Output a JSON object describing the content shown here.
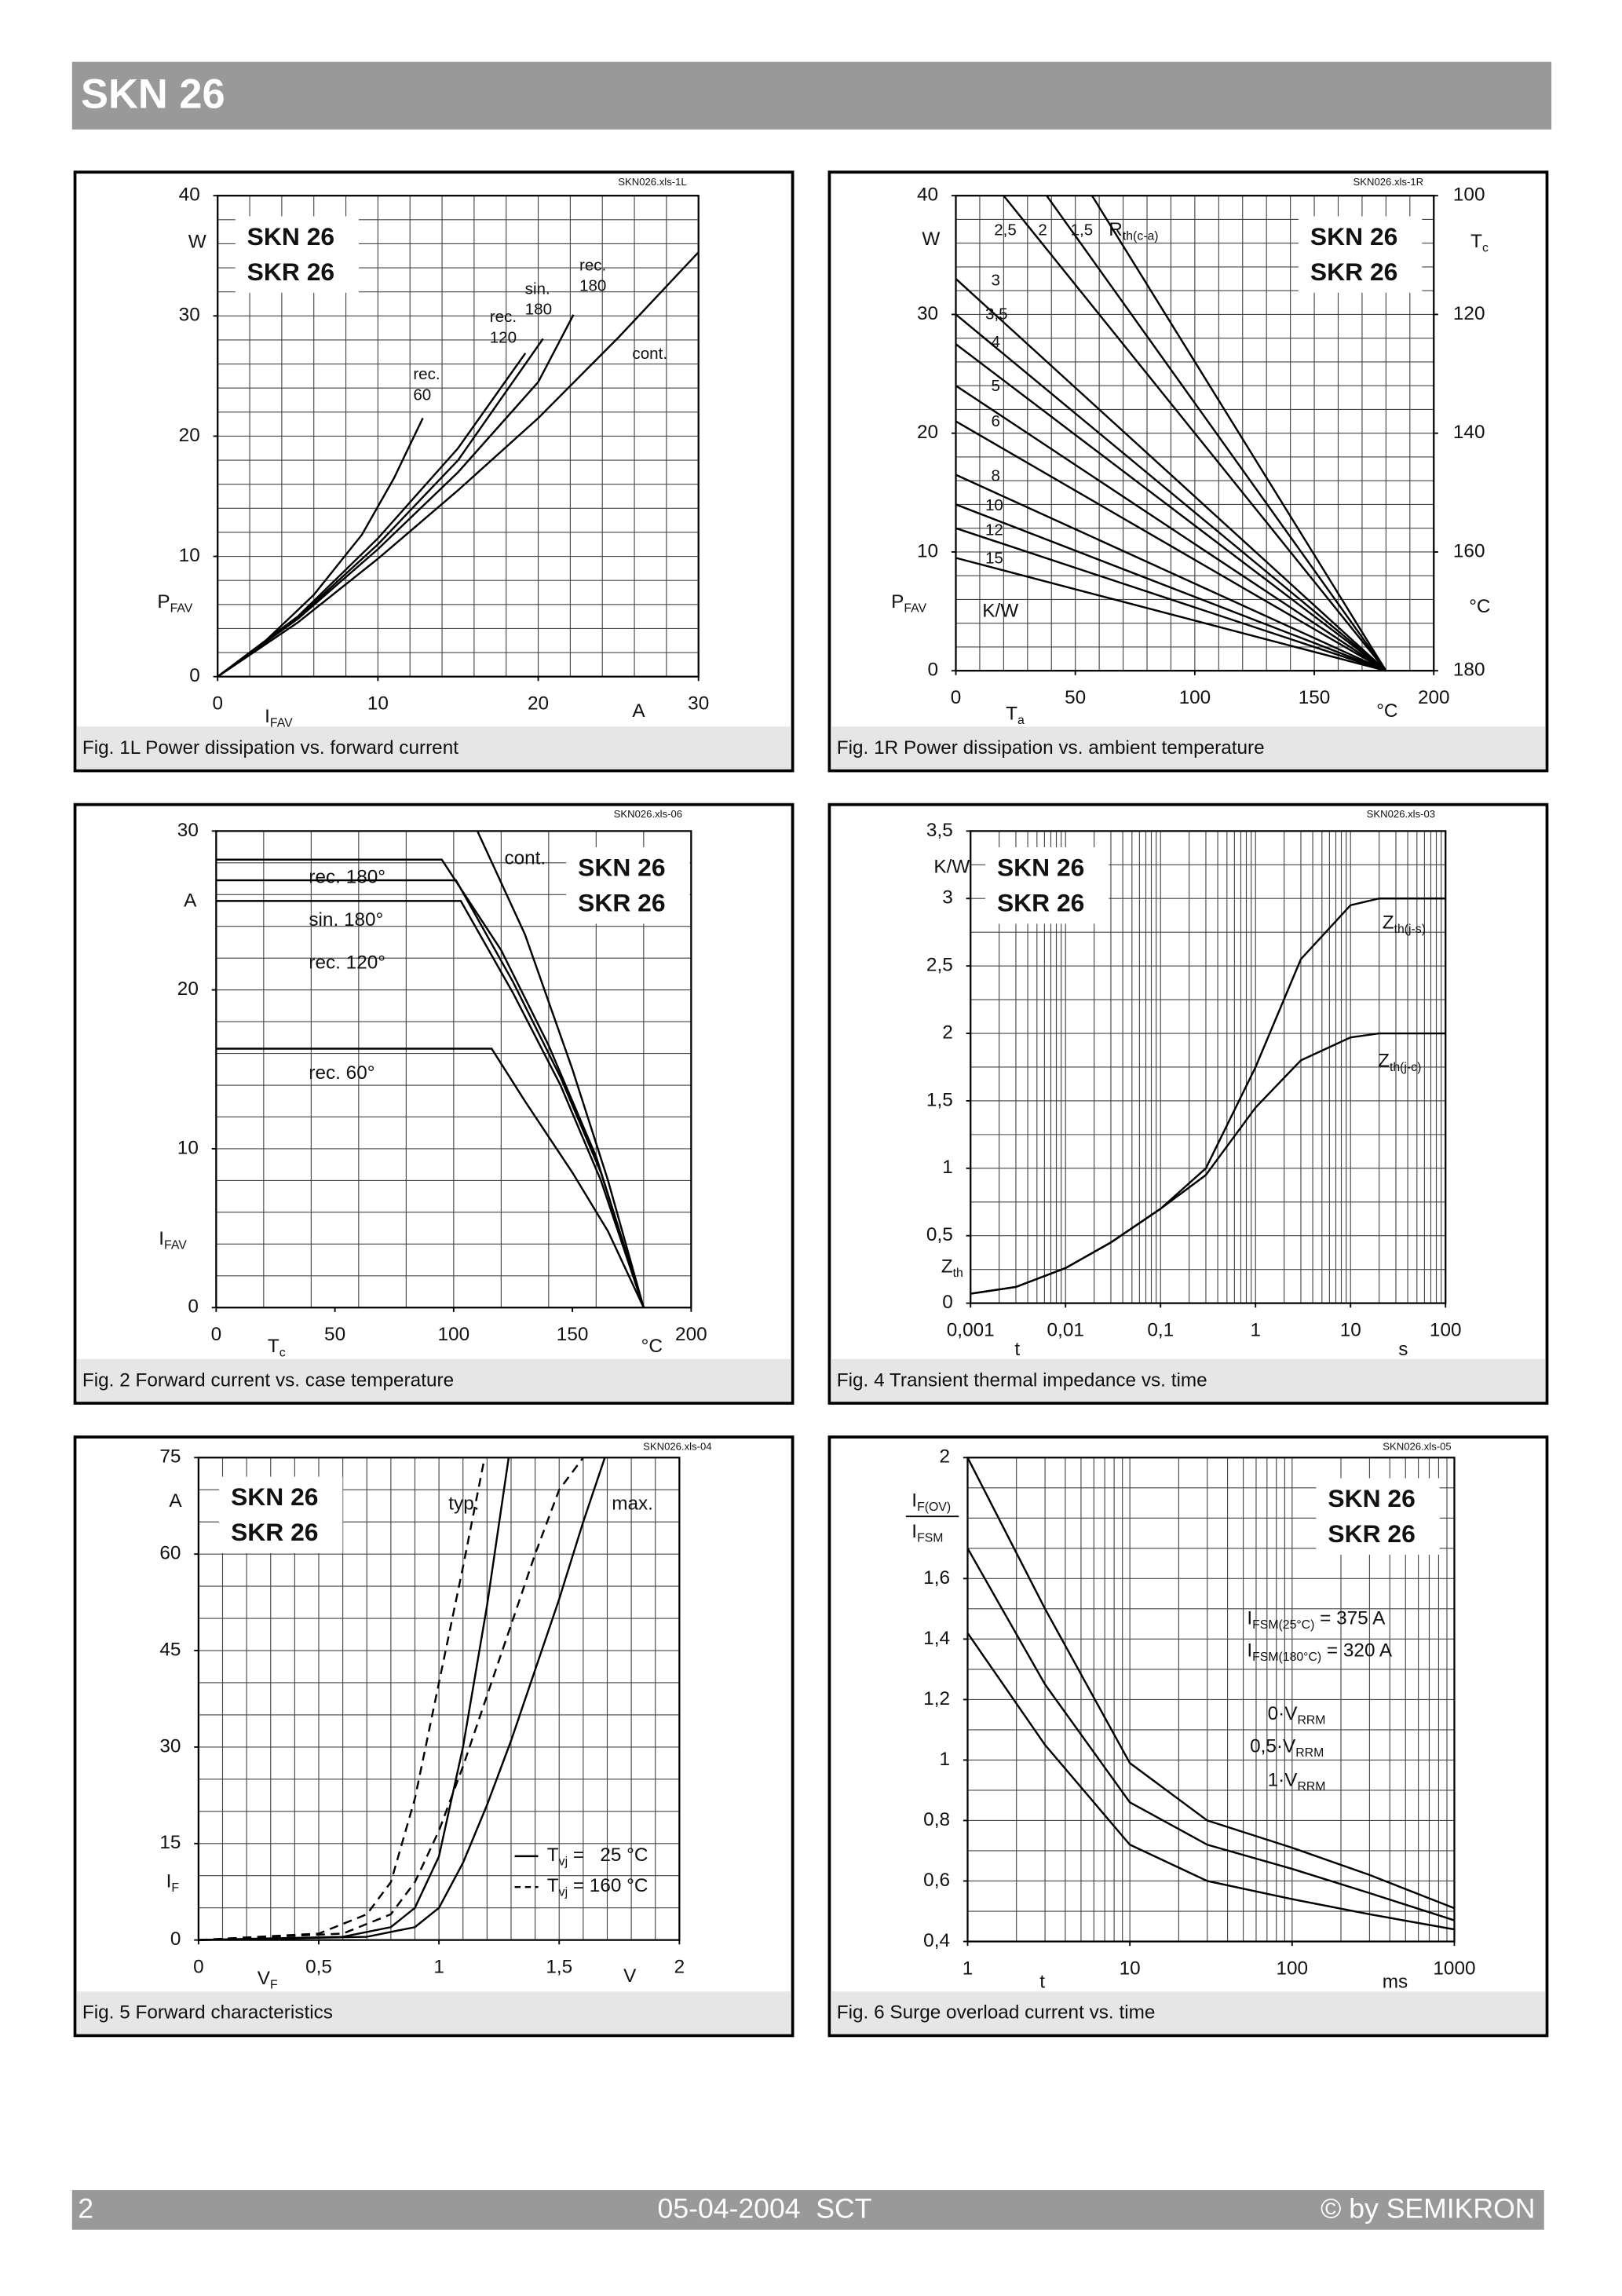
{
  "header": {
    "title": "SKN 26"
  },
  "footer": {
    "page": "2",
    "date": "05-04-2004  SCT",
    "copyright": "© by SEMIKRON"
  },
  "chart_data": [
    {
      "type": "line",
      "file": "SKN026.xls-1L",
      "caption": "Fig. 1L Power dissipation vs. forward current",
      "brand": [
        "SKN 26",
        "SKR 26"
      ],
      "xlim": [
        0,
        30
      ],
      "xticks": [
        0,
        10,
        20,
        30
      ],
      "xgrid": [
        0,
        2,
        4,
        6,
        8,
        10,
        12,
        14,
        16,
        18,
        20,
        22,
        24,
        26,
        28,
        30
      ],
      "ylim": [
        0,
        40
      ],
      "yticks": [
        0,
        10,
        20,
        30,
        40
      ],
      "ygrid": [
        0,
        2,
        4,
        6,
        8,
        10,
        12,
        14,
        16,
        18,
        20,
        22,
        24,
        26,
        28,
        30,
        32,
        34,
        36,
        38,
        40
      ],
      "labels": [
        "W",
        {
          "main": "P",
          "sub": "FAV"
        },
        {
          "main": "I",
          "sub": "FAV"
        },
        "A"
      ],
      "series": [
        {
          "name": [
            "rec.",
            "60"
          ],
          "x": [
            0,
            3,
            6,
            9,
            11,
            12.8
          ],
          "values": [
            0,
            3,
            6.8,
            11.8,
            16.5,
            21.5
          ]
        },
        {
          "name": [
            "rec.",
            "120"
          ],
          "x": [
            0,
            5,
            10,
            15,
            19.2
          ],
          "values": [
            0,
            5,
            11.5,
            19,
            26.9
          ]
        },
        {
          "name": [
            "sin.",
            "180"
          ],
          "x": [
            0,
            5,
            10,
            15,
            20.3
          ],
          "values": [
            0,
            4.9,
            11,
            18,
            28.1
          ]
        },
        {
          "name": [
            "rec.",
            "180"
          ],
          "x": [
            0,
            5,
            10,
            15,
            20,
            22.2
          ],
          "values": [
            0,
            4.8,
            10.6,
            17,
            24.5,
            30.1
          ]
        },
        {
          "name": "cont.",
          "x": [
            0,
            5,
            10,
            15,
            20,
            25,
            30
          ],
          "values": [
            0,
            4.5,
            9.8,
            15.5,
            21.5,
            28.2,
            35.3
          ]
        }
      ]
    },
    {
      "type": "line",
      "file": "SKN026.xls-1R",
      "caption": "Fig. 1R Power dissipation vs. ambient temperature",
      "brand": [
        "SKN 26",
        "SKR 26"
      ],
      "xlim": [
        0,
        200
      ],
      "xticks": [
        0,
        50,
        100,
        150,
        200
      ],
      "xgrid": [
        0,
        10,
        20,
        30,
        40,
        50,
        60,
        70,
        80,
        90,
        100,
        110,
        120,
        130,
        140,
        150,
        160,
        170,
        180,
        190,
        200
      ],
      "ylim": [
        0,
        40
      ],
      "yticks": [
        0,
        10,
        20,
        30,
        40
      ],
      "ygrid": [
        0,
        2,
        4,
        6,
        8,
        10,
        12,
        14,
        16,
        18,
        20,
        22,
        24,
        26,
        28,
        30,
        32,
        34,
        36,
        38,
        40
      ],
      "y2lim": [
        180,
        100
      ],
      "y2ticks": [
        100,
        120,
        140,
        160,
        180
      ],
      "labels": [
        "W",
        {
          "main": "P",
          "sub": "FAV"
        },
        {
          "main": "T",
          "sub": "a"
        },
        "°C",
        {
          "main": "T",
          "sub": "c"
        },
        "°C",
        "K/W",
        {
          "main": "R",
          "sub": "th(c-a)"
        }
      ],
      "series": [
        {
          "name": "2,5",
          "x": [
            20,
            180
          ],
          "values": [
            40,
            0
          ]
        },
        {
          "name": "2",
          "x": [
            38,
            180
          ],
          "values": [
            40,
            0
          ]
        },
        {
          "name": "1,5",
          "x": [
            57,
            180
          ],
          "values": [
            40,
            0
          ]
        },
        {
          "name": "3",
          "x": [
            0,
            180
          ],
          "values": [
            33,
            0
          ]
        },
        {
          "name": "3,5",
          "x": [
            0,
            180
          ],
          "values": [
            30,
            0
          ]
        },
        {
          "name": "4",
          "x": [
            0,
            180
          ],
          "values": [
            27.5,
            0
          ]
        },
        {
          "name": "5",
          "x": [
            0,
            180
          ],
          "values": [
            24,
            0
          ]
        },
        {
          "name": "6",
          "x": [
            0,
            180
          ],
          "values": [
            21,
            0
          ]
        },
        {
          "name": "8",
          "x": [
            0,
            180
          ],
          "values": [
            16.5,
            0
          ]
        },
        {
          "name": "10",
          "x": [
            0,
            180
          ],
          "values": [
            14,
            0
          ]
        },
        {
          "name": "12",
          "x": [
            0,
            180
          ],
          "values": [
            12,
            0
          ]
        },
        {
          "name": "15",
          "x": [
            0,
            180
          ],
          "values": [
            9.5,
            0
          ]
        }
      ]
    },
    {
      "type": "line",
      "file": "SKN026.xls-06",
      "caption": "Fig. 2 Forward current vs. case temperature",
      "brand": [
        "SKN 26",
        "SKR 26"
      ],
      "xlim": [
        0,
        200
      ],
      "xticks": [
        0,
        50,
        100,
        150,
        200
      ],
      "xgrid": [
        0,
        20,
        40,
        60,
        80,
        100,
        120,
        140,
        160,
        180,
        200
      ],
      "ylim": [
        0,
        30
      ],
      "yticks": [
        0,
        10,
        20,
        30
      ],
      "ygrid": [
        0,
        2,
        4,
        6,
        8,
        10,
        12,
        14,
        16,
        18,
        20,
        22,
        24,
        26,
        28,
        30
      ],
      "labels": [
        "A",
        {
          "main": "I",
          "sub": "FAV"
        },
        {
          "main": "T",
          "sub": "c"
        },
        "°C"
      ],
      "series": [
        {
          "name": "rec. 180°",
          "x": [
            0,
            95,
            120,
            140,
            160,
            180
          ],
          "values": [
            28.2,
            28.2,
            22.5,
            16.5,
            9.5,
            0
          ]
        },
        {
          "name": "sin. 180°",
          "x": [
            0,
            101,
            125,
            145,
            162,
            180
          ],
          "values": [
            26.9,
            26.9,
            20.5,
            14.5,
            8.5,
            0
          ]
        },
        {
          "name": "rec. 120°",
          "x": [
            0,
            103,
            125,
            145,
            162,
            180
          ],
          "values": [
            25.6,
            25.6,
            19.8,
            14,
            8,
            0
          ]
        },
        {
          "name": "rec. 60°",
          "x": [
            0,
            116,
            130,
            150,
            165,
            180
          ],
          "values": [
            16.3,
            16.3,
            13,
            8.5,
            4.8,
            0
          ]
        },
        {
          "name": "cont.",
          "x": [
            110,
            130,
            150,
            165,
            180
          ],
          "values": [
            30,
            23.5,
            15,
            8,
            0
          ]
        }
      ]
    },
    {
      "type": "line",
      "file": "SKN026.xls-03",
      "caption": "Fig. 4 Transient thermal impedance vs. time",
      "brand": [
        "SKN 26",
        "SKR 26"
      ],
      "xlog": true,
      "xlim": [
        0.001,
        100
      ],
      "xticks": [
        {
          "value": 0.001,
          "label": "0,001"
        },
        {
          "value": 0.01,
          "label": "0,01"
        },
        {
          "value": 0.1,
          "label": "0,1"
        },
        1,
        10,
        100
      ],
      "xgrid": [
        0.001,
        0.002,
        0.003,
        0.004,
        0.005,
        0.006,
        0.007,
        0.008,
        0.009,
        0.01,
        0.02,
        0.03,
        0.04,
        0.05,
        0.06,
        0.07,
        0.08,
        0.09,
        0.1,
        0.2,
        0.3,
        0.4,
        0.5,
        0.6,
        0.7,
        0.8,
        0.9,
        1,
        2,
        3,
        4,
        5,
        6,
        7,
        8,
        9,
        10,
        20,
        30,
        40,
        50,
        60,
        70,
        80,
        90,
        100
      ],
      "ylim": [
        0,
        3.5
      ],
      "yticks": [
        0,
        {
          "value": 0.5,
          "label": "0,5"
        },
        1,
        {
          "value": 1.5,
          "label": "1,5"
        },
        2,
        {
          "value": 2.5,
          "label": "2,5"
        },
        3,
        {
          "value": 3.5,
          "label": "3,5"
        }
      ],
      "ygrid": [
        0,
        0.25,
        0.5,
        0.75,
        1,
        1.25,
        1.5,
        1.75,
        2,
        2.25,
        2.5,
        2.75,
        3,
        3.25,
        3.5
      ],
      "labels": [
        "K/W",
        {
          "main": "Z",
          "sub": "th"
        },
        "t",
        "s"
      ],
      "x": [
        0.001,
        0.003,
        0.01,
        0.03,
        0.1,
        0.3,
        1,
        3,
        10,
        20,
        100
      ],
      "series": [
        {
          "name": {
            "main": "Z",
            "sub": "th(j-s)"
          },
          "values": [
            0.07,
            0.12,
            0.26,
            0.45,
            0.7,
            1.0,
            1.75,
            2.55,
            2.95,
            3.0,
            3.0
          ]
        },
        {
          "name": {
            "main": "Z",
            "sub": "th(j-c)"
          },
          "values": [
            0.07,
            0.12,
            0.26,
            0.45,
            0.7,
            0.95,
            1.45,
            1.8,
            1.97,
            2.0,
            2.0
          ]
        }
      ]
    },
    {
      "type": "line",
      "file": "SKN026.xls-04",
      "caption": "Fig. 5 Forward characteristics",
      "brand": [
        "SKN 26",
        "SKR 26"
      ],
      "xlim": [
        0,
        2
      ],
      "xticks": [
        0,
        {
          "value": 0.5,
          "label": "0,5"
        },
        1,
        {
          "value": 1.5,
          "label": "1,5"
        },
        2
      ],
      "xgrid": [
        0,
        0.1,
        0.2,
        0.3,
        0.4,
        0.5,
        0.6,
        0.7,
        0.8,
        0.9,
        1,
        1.1,
        1.2,
        1.3,
        1.4,
        1.5,
        1.6,
        1.7,
        1.8,
        1.9,
        2
      ],
      "ylim": [
        0,
        75
      ],
      "yticks": [
        0,
        15,
        30,
        45,
        60,
        75
      ],
      "ygrid": [
        0,
        5,
        10,
        15,
        20,
        25,
        30,
        35,
        40,
        45,
        50,
        55,
        60,
        65,
        70,
        75
      ],
      "labels": [
        "A",
        {
          "main": "I",
          "sub": "F"
        },
        {
          "main": "V",
          "sub": "F"
        },
        "V"
      ],
      "annotations": [
        "typ.",
        "max."
      ],
      "legend": [
        {
          "main": "T",
          "sub": "vj",
          "rest": " =   25 °C",
          "dashed": false
        },
        {
          "main": "T",
          "sub": "vj",
          "rest": " = 160 °C",
          "dashed": true
        }
      ],
      "series": [
        {
          "legend": 0,
          "x": [
            0,
            0.6,
            0.8,
            0.9,
            1.0,
            1.1,
            1.2,
            1.29
          ],
          "values": [
            0,
            0.5,
            2,
            5,
            13,
            30,
            52,
            75
          ]
        },
        {
          "legend": 1,
          "x": [
            0,
            0.5,
            0.7,
            0.8,
            0.9,
            1.0,
            1.1,
            1.19
          ],
          "values": [
            0,
            1,
            4,
            9,
            22,
            40,
            58,
            75
          ]
        },
        {
          "legend": 0,
          "x": [
            0,
            0.7,
            0.9,
            1.0,
            1.1,
            1.2,
            1.3,
            1.4,
            1.5,
            1.6,
            1.69
          ],
          "values": [
            0,
            0.5,
            2,
            5,
            12,
            21,
            31,
            42,
            53,
            65,
            75
          ]
        },
        {
          "legend": 1,
          "x": [
            0,
            0.6,
            0.8,
            0.9,
            1.0,
            1.1,
            1.2,
            1.3,
            1.4,
            1.5,
            1.6
          ],
          "values": [
            0,
            1,
            4,
            9,
            17,
            27,
            38,
            49,
            60,
            70,
            75
          ]
        }
      ]
    },
    {
      "type": "line",
      "file": "SKN026.xls-05",
      "caption": "Fig. 6 Surge overload current vs. time",
      "brand": [
        "SKN 26",
        "SKR 26"
      ],
      "xlog": true,
      "xlim": [
        1,
        1000
      ],
      "xticks": [
        1,
        10,
        100,
        1000
      ],
      "xgrid": [
        1,
        2,
        3,
        4,
        5,
        6,
        7,
        8,
        9,
        10,
        20,
        30,
        40,
        50,
        60,
        70,
        80,
        90,
        100,
        200,
        300,
        400,
        500,
        600,
        700,
        800,
        900,
        1000
      ],
      "ylim": [
        0.4,
        2
      ],
      "yticks": [
        {
          "value": 0.4,
          "label": "0,4"
        },
        {
          "value": 0.6,
          "label": "0,6"
        },
        {
          "value": 0.8,
          "label": "0,8"
        },
        1,
        {
          "value": 1.2,
          "label": "1,2"
        },
        {
          "value": 1.4,
          "label": "1,4"
        },
        {
          "value": 1.6,
          "label": "1,6"
        },
        2
      ],
      "ygrid": [
        0.4,
        0.5,
        0.6,
        0.7,
        0.8,
        0.9,
        1,
        1.1,
        1.2,
        1.3,
        1.4,
        1.5,
        1.6,
        1.7,
        1.8,
        1.9,
        2
      ],
      "labels": [
        {
          "main": "I",
          "sub": "F(OV)"
        },
        {
          "main": "I",
          "sub": "FSM"
        },
        "t",
        "ms"
      ],
      "annotations": [
        {
          "main": "I",
          "sub": "FSM(25°C)",
          "rest": " = 375 A"
        },
        {
          "main": "I",
          "sub": "FSM(180°C)",
          "rest": " = 320 A"
        }
      ],
      "x": [
        1,
        3,
        10,
        30,
        100,
        300,
        1000
      ],
      "series": [
        {
          "name": {
            "main": "0·V",
            "sub": "RRM"
          },
          "values": [
            2.0,
            1.5,
            0.99,
            0.8,
            0.71,
            0.62,
            0.51
          ]
        },
        {
          "name": {
            "main": "0,5·V",
            "sub": "RRM"
          },
          "values": [
            1.7,
            1.25,
            0.86,
            0.72,
            0.64,
            0.56,
            0.47
          ]
        },
        {
          "name": {
            "main": "1·V",
            "sub": "RRM"
          },
          "values": [
            1.42,
            1.05,
            0.72,
            0.6,
            0.54,
            0.49,
            0.44
          ]
        }
      ]
    }
  ]
}
